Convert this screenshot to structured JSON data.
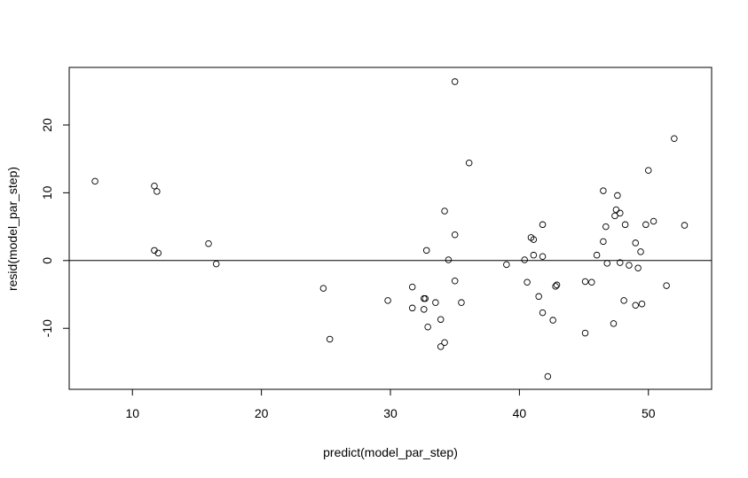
{
  "chart_data": {
    "type": "scatter",
    "xlabel": "predict(model_par_step)",
    "ylabel": "resid(model_par_step)",
    "xlim": [
      5.1,
      54.9
    ],
    "ylim": [
      -19.0,
      28.5
    ],
    "xticks": [
      10,
      20,
      30,
      40,
      50
    ],
    "yticks": [
      -10,
      0,
      10,
      20
    ],
    "hline": 0,
    "grid": false,
    "points": [
      {
        "x": 7.1,
        "y": 11.7
      },
      {
        "x": 11.7,
        "y": 11.0
      },
      {
        "x": 11.9,
        "y": 10.2
      },
      {
        "x": 11.7,
        "y": 1.5
      },
      {
        "x": 12.0,
        "y": 1.1
      },
      {
        "x": 15.9,
        "y": 2.5
      },
      {
        "x": 16.5,
        "y": -0.5
      },
      {
        "x": 24.8,
        "y": -4.1
      },
      {
        "x": 25.3,
        "y": -11.6
      },
      {
        "x": 29.8,
        "y": -5.9
      },
      {
        "x": 31.7,
        "y": -3.9
      },
      {
        "x": 31.7,
        "y": -7.0
      },
      {
        "x": 32.6,
        "y": -5.6
      },
      {
        "x": 32.7,
        "y": -5.6
      },
      {
        "x": 32.6,
        "y": -7.2
      },
      {
        "x": 32.8,
        "y": 1.5
      },
      {
        "x": 32.9,
        "y": -9.8
      },
      {
        "x": 33.5,
        "y": -6.2
      },
      {
        "x": 33.9,
        "y": -8.7
      },
      {
        "x": 33.9,
        "y": -12.7
      },
      {
        "x": 34.2,
        "y": -12.1
      },
      {
        "x": 34.2,
        "y": 7.3
      },
      {
        "x": 34.5,
        "y": 0.1
      },
      {
        "x": 35.0,
        "y": 26.4
      },
      {
        "x": 35.0,
        "y": 3.8
      },
      {
        "x": 35.0,
        "y": -3.0
      },
      {
        "x": 35.5,
        "y": -6.2
      },
      {
        "x": 36.1,
        "y": 14.4
      },
      {
        "x": 39.0,
        "y": -0.6
      },
      {
        "x": 40.4,
        "y": 0.1
      },
      {
        "x": 40.6,
        "y": -3.2
      },
      {
        "x": 40.9,
        "y": 3.4
      },
      {
        "x": 41.1,
        "y": 3.1
      },
      {
        "x": 41.1,
        "y": 0.8
      },
      {
        "x": 41.5,
        "y": -5.3
      },
      {
        "x": 41.8,
        "y": 5.3
      },
      {
        "x": 41.8,
        "y": 0.6
      },
      {
        "x": 41.8,
        "y": -7.7
      },
      {
        "x": 42.2,
        "y": -17.1
      },
      {
        "x": 42.6,
        "y": -8.8
      },
      {
        "x": 42.8,
        "y": -3.8
      },
      {
        "x": 42.9,
        "y": -3.6
      },
      {
        "x": 45.1,
        "y": -10.7
      },
      {
        "x": 45.1,
        "y": -3.1
      },
      {
        "x": 45.6,
        "y": -3.2
      },
      {
        "x": 46.0,
        "y": 0.8
      },
      {
        "x": 46.5,
        "y": 10.3
      },
      {
        "x": 46.5,
        "y": 2.8
      },
      {
        "x": 46.7,
        "y": 5.0
      },
      {
        "x": 46.8,
        "y": -0.4
      },
      {
        "x": 47.3,
        "y": -9.3
      },
      {
        "x": 47.4,
        "y": 6.6
      },
      {
        "x": 47.5,
        "y": 7.5
      },
      {
        "x": 47.6,
        "y": 9.6
      },
      {
        "x": 47.8,
        "y": 7.0
      },
      {
        "x": 47.8,
        "y": -0.3
      },
      {
        "x": 48.1,
        "y": -5.9
      },
      {
        "x": 48.2,
        "y": 5.3
      },
      {
        "x": 48.5,
        "y": -0.7
      },
      {
        "x": 49.0,
        "y": 2.6
      },
      {
        "x": 49.0,
        "y": -6.6
      },
      {
        "x": 49.2,
        "y": -1.1
      },
      {
        "x": 49.4,
        "y": 1.3
      },
      {
        "x": 49.5,
        "y": -6.4
      },
      {
        "x": 49.8,
        "y": 5.3
      },
      {
        "x": 50.0,
        "y": 13.3
      },
      {
        "x": 50.4,
        "y": 5.8
      },
      {
        "x": 51.4,
        "y": -3.7
      },
      {
        "x": 52.0,
        "y": 18.0
      },
      {
        "x": 52.8,
        "y": 5.2
      }
    ]
  }
}
